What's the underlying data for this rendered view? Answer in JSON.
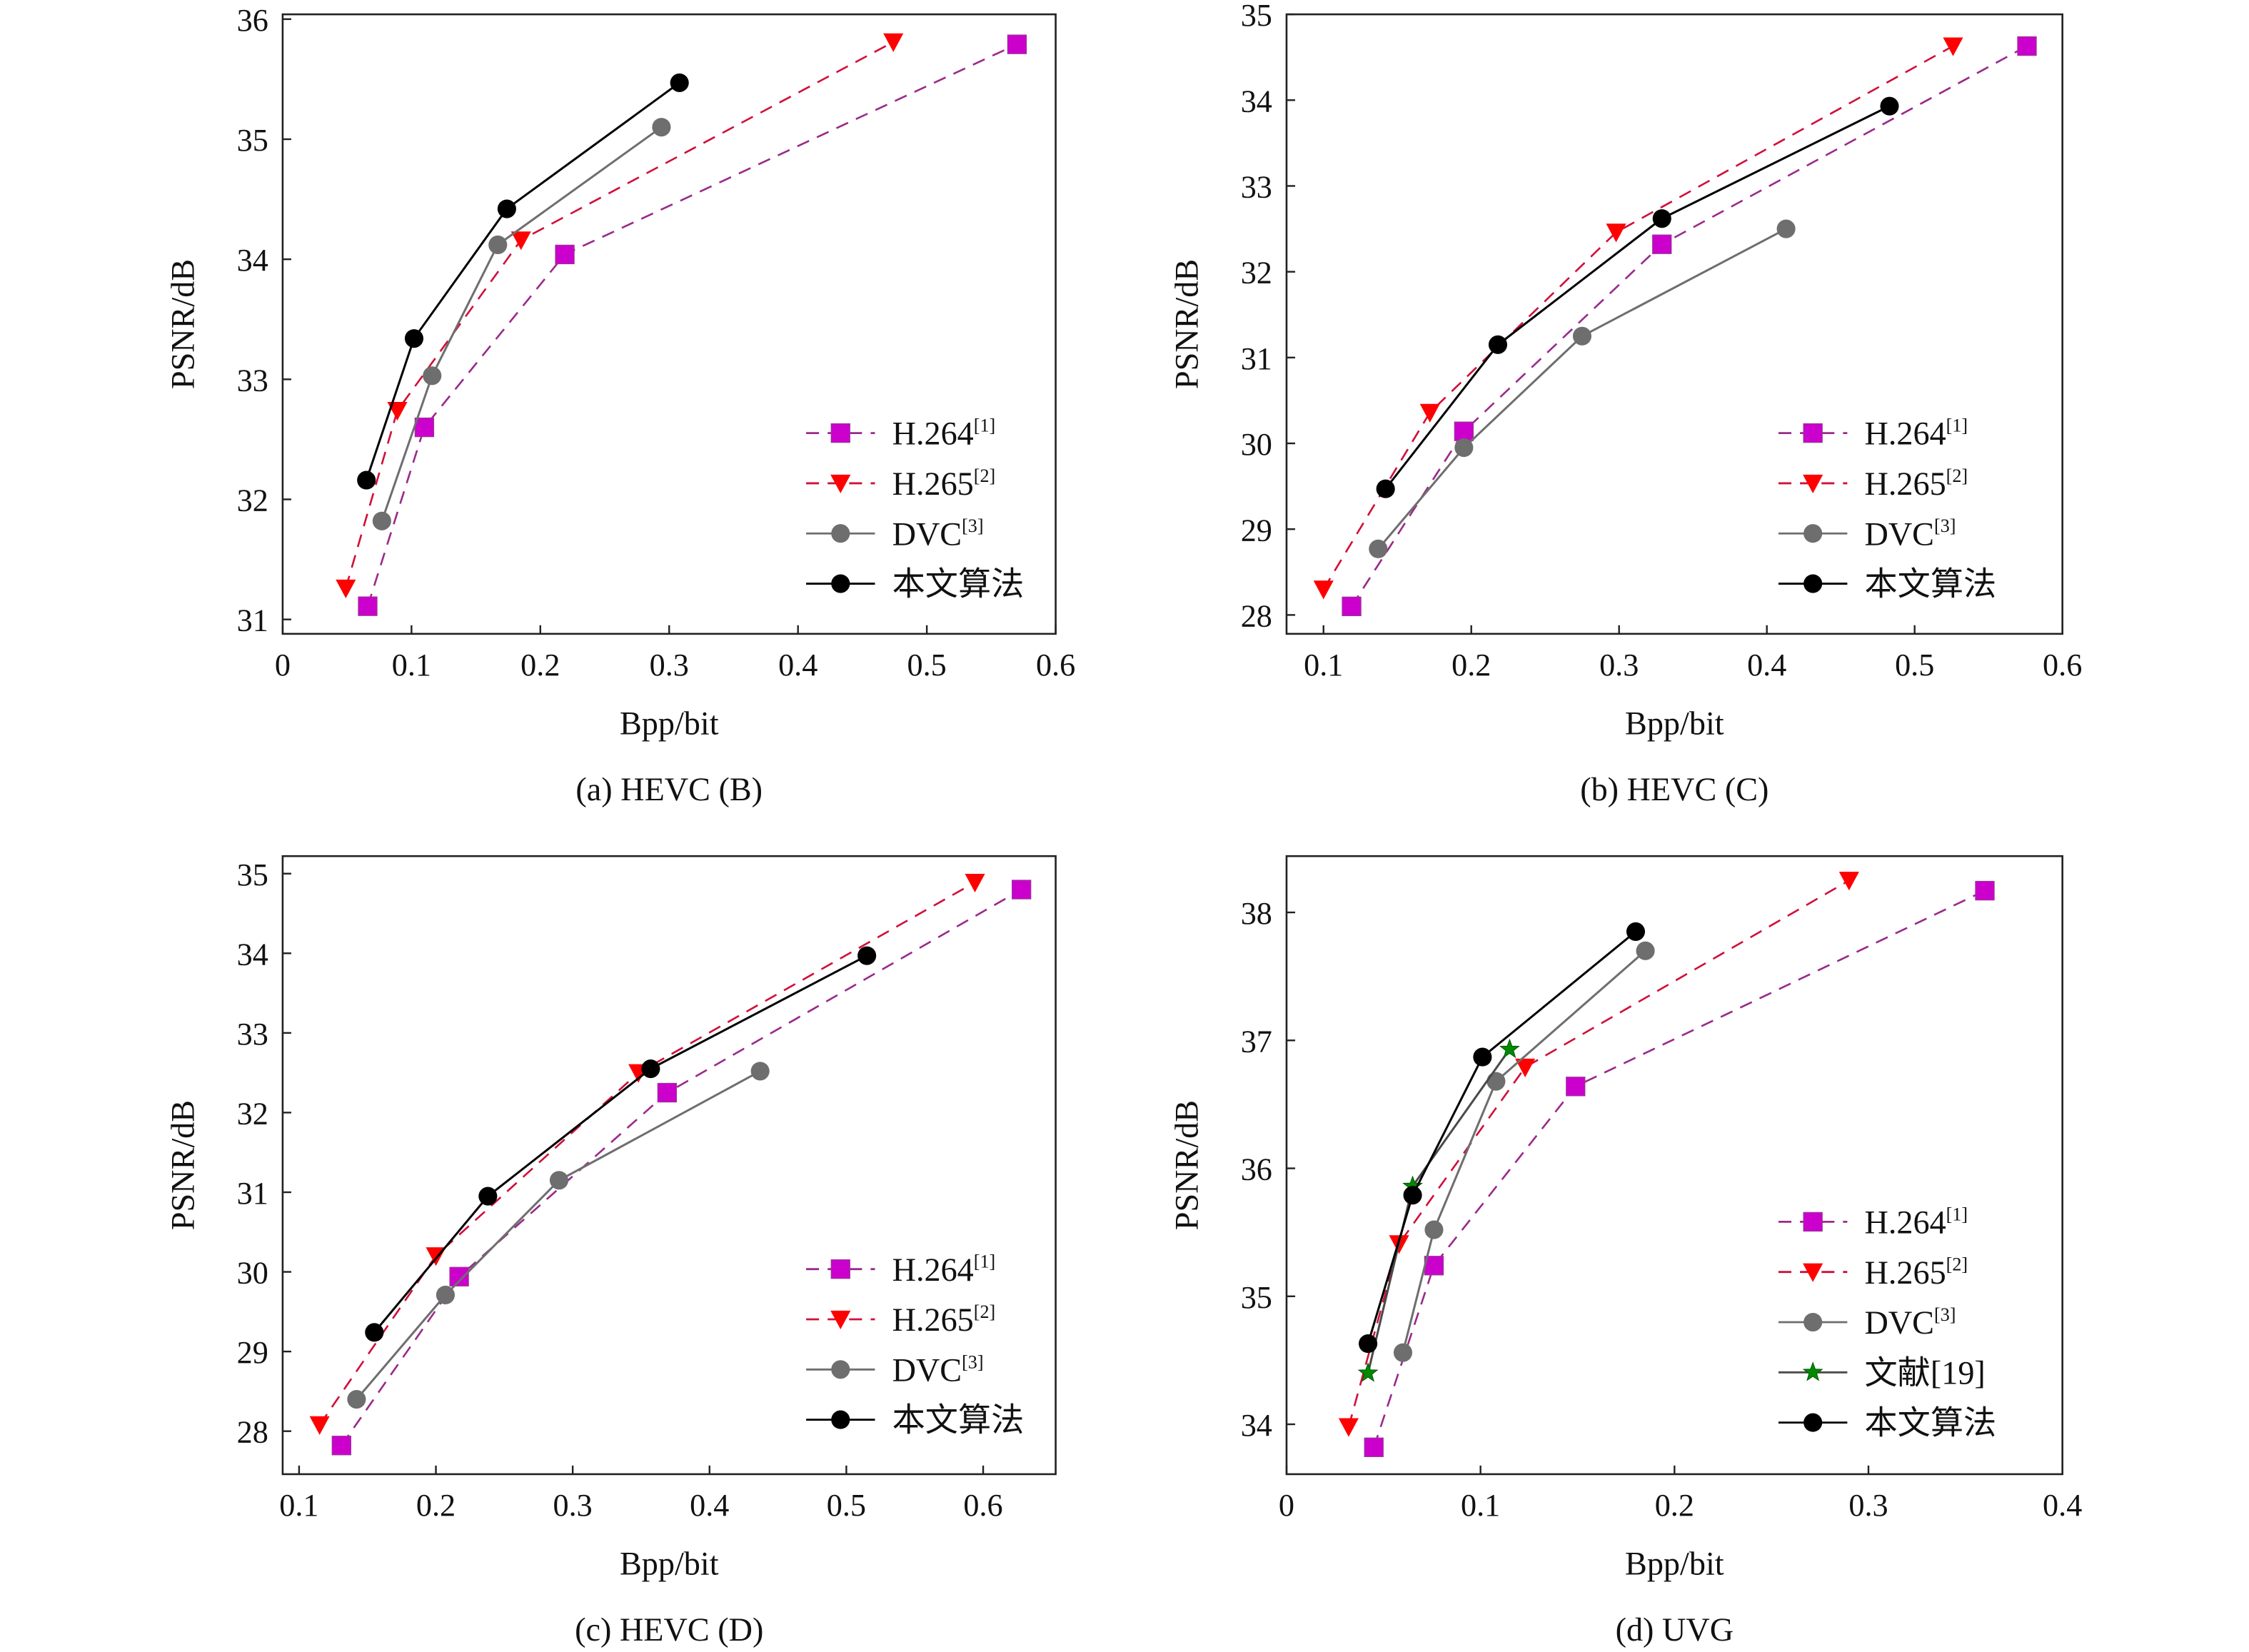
{
  "chart_data": [
    {
      "type": "line",
      "caption": "(a) HEVC (B)",
      "xlabel": "Bpp/bit",
      "ylabel": "PSNR/dB",
      "xlim": [
        0,
        0.6
      ],
      "ylim": [
        30.88,
        36.04
      ],
      "xticks": [
        "0",
        "0.1",
        "0.2",
        "0.3",
        "0.4",
        "0.5",
        "0.6"
      ],
      "xtick_values": [
        0,
        0.1,
        0.2,
        0.3,
        0.4,
        0.5,
        0.6
      ],
      "yticks": [
        "31",
        "32",
        "33",
        "34",
        "35",
        "36"
      ],
      "ytick_values": [
        31,
        32,
        33,
        34,
        35,
        36
      ],
      "legend_placement": "lower-right",
      "series": [
        {
          "name": "H.264",
          "ref": "[1]",
          "style": "h264",
          "x": [
            0.066,
            0.11,
            0.219,
            0.57
          ],
          "y": [
            31.11,
            32.6,
            34.04,
            35.79
          ]
        },
        {
          "name": "H.265",
          "ref": "[2]",
          "style": "h265",
          "x": [
            0.049,
            0.089,
            0.185,
            0.474
          ],
          "y": [
            31.26,
            32.74,
            34.16,
            35.81
          ]
        },
        {
          "name": "DVC",
          "ref": "[3]",
          "style": "dvc",
          "x": [
            0.077,
            0.116,
            0.167,
            0.294
          ],
          "y": [
            31.82,
            33.03,
            34.12,
            35.1
          ]
        },
        {
          "name": "本文算法",
          "ref": "",
          "style": "ours",
          "x": [
            0.065,
            0.102,
            0.174,
            0.308
          ],
          "y": [
            32.16,
            33.34,
            34.42,
            35.47
          ]
        }
      ]
    },
    {
      "type": "line",
      "caption": "(b) HEVC (C)",
      "xlabel": "Bpp/bit",
      "ylabel": "PSNR/dB",
      "xlim": [
        0.075,
        0.6
      ],
      "ylim": [
        27.78,
        35.0
      ],
      "xticks": [
        "0.1",
        "0.2",
        "0.3",
        "0.4",
        "0.5",
        "0.6"
      ],
      "xtick_values": [
        0.1,
        0.2,
        0.3,
        0.4,
        0.5,
        0.6
      ],
      "yticks": [
        "28",
        "29",
        "30",
        "31",
        "32",
        "33",
        "34",
        "35"
      ],
      "ytick_values": [
        28,
        29,
        30,
        31,
        32,
        33,
        34,
        35
      ],
      "legend_placement": "lower-right",
      "series": [
        {
          "name": "H.264",
          "ref": "[1]",
          "style": "h264",
          "x": [
            0.119,
            0.195,
            0.329,
            0.576
          ],
          "y": [
            28.1,
            30.14,
            32.32,
            34.63
          ]
        },
        {
          "name": "H.265",
          "ref": "[2]",
          "style": "h265",
          "x": [
            0.1,
            0.172,
            0.298,
            0.526
          ],
          "y": [
            28.3,
            30.36,
            32.46,
            34.63
          ]
        },
        {
          "name": "DVC",
          "ref": "[3]",
          "style": "dvc",
          "x": [
            0.137,
            0.195,
            0.275,
            0.413
          ],
          "y": [
            28.77,
            29.95,
            31.25,
            32.5
          ]
        },
        {
          "name": "本文算法",
          "ref": "",
          "style": "ours",
          "x": [
            0.142,
            0.218,
            0.329,
            0.483
          ],
          "y": [
            29.47,
            31.15,
            32.62,
            33.93
          ]
        }
      ]
    },
    {
      "type": "line",
      "caption": "(c) HEVC (D)",
      "xlabel": "Bpp/bit",
      "ylabel": "PSNR/dB",
      "xlim": [
        0.088,
        0.653
      ],
      "ylim": [
        27.46,
        35.22
      ],
      "xticks": [
        "0.1",
        "0.2",
        "0.3",
        "0.4",
        "0.5",
        "0.6"
      ],
      "xtick_values": [
        0.1,
        0.2,
        0.3,
        0.4,
        0.5,
        0.6
      ],
      "yticks": [
        "28",
        "29",
        "30",
        "31",
        "32",
        "33",
        "34",
        "35"
      ],
      "ytick_values": [
        28,
        29,
        30,
        31,
        32,
        33,
        34,
        35
      ],
      "legend_placement": "lower-right",
      "series": [
        {
          "name": "H.264",
          "ref": "[1]",
          "style": "h264",
          "x": [
            0.131,
            0.217,
            0.369,
            0.628
          ],
          "y": [
            27.82,
            29.94,
            32.25,
            34.8
          ]
        },
        {
          "name": "H.265",
          "ref": "[2]",
          "style": "h265",
          "x": [
            0.115,
            0.2,
            0.348,
            0.594
          ],
          "y": [
            28.08,
            30.2,
            32.5,
            34.89
          ]
        },
        {
          "name": "DVC",
          "ref": "[3]",
          "style": "dvc",
          "x": [
            0.142,
            0.207,
            0.29,
            0.437
          ],
          "y": [
            28.4,
            29.71,
            31.15,
            32.52
          ]
        },
        {
          "name": "本文算法",
          "ref": "",
          "style": "ours",
          "x": [
            0.155,
            0.238,
            0.357,
            0.515
          ],
          "y": [
            29.24,
            30.95,
            32.55,
            33.97
          ]
        }
      ]
    },
    {
      "type": "line",
      "caption": "(d) UVG",
      "xlabel": "Bpp/bit",
      "ylabel": "PSNR/dB",
      "xlim": [
        0,
        0.4
      ],
      "ylim": [
        33.61,
        38.44
      ],
      "xticks": [
        "0",
        "0.1",
        "0.2",
        "0.3",
        "0.4"
      ],
      "xtick_values": [
        0,
        0.1,
        0.2,
        0.3,
        0.4
      ],
      "yticks": [
        "34",
        "35",
        "36",
        "37",
        "38"
      ],
      "ytick_values": [
        34,
        35,
        36,
        37,
        38
      ],
      "legend_placement": "lower-right",
      "series": [
        {
          "name": "H.264",
          "ref": "[1]",
          "style": "h264",
          "x": [
            0.045,
            0.076,
            0.149,
            0.36
          ],
          "y": [
            33.82,
            35.24,
            36.64,
            38.17
          ]
        },
        {
          "name": "H.265",
          "ref": "[2]",
          "style": "h265",
          "x": [
            0.032,
            0.058,
            0.123,
            0.29
          ],
          "y": [
            33.98,
            35.41,
            36.79,
            38.25
          ]
        },
        {
          "name": "DVC",
          "ref": "[3]",
          "style": "dvc",
          "x": [
            0.06,
            0.076,
            0.108,
            0.185
          ],
          "y": [
            34.56,
            35.52,
            36.68,
            37.7
          ]
        },
        {
          "name": "文献[19]",
          "ref": "",
          "style": "ref19",
          "x": [
            0.042,
            0.065,
            0.115
          ],
          "y": [
            34.4,
            35.86,
            36.93
          ]
        },
        {
          "name": "本文算法",
          "ref": "",
          "style": "ours",
          "x": [
            0.042,
            0.065,
            0.101,
            0.18
          ],
          "y": [
            34.63,
            35.79,
            36.87,
            37.85
          ]
        }
      ]
    }
  ],
  "styles": {
    "h264": {
      "marker": "square",
      "marker_color": "#cc00cc",
      "line_color": "#9a2a8a",
      "dashed": true
    },
    "h265": {
      "marker": "triangle-down",
      "marker_color": "#ff0000",
      "line_color": "#d0103a",
      "dashed": true
    },
    "dvc": {
      "marker": "circle",
      "marker_color": "#6e6e6e",
      "line_color": "#6e6e6e",
      "dashed": false
    },
    "ref19": {
      "marker": "star",
      "marker_color": "#008a00",
      "line_color": "#4a4a4a",
      "dashed": false
    },
    "ours": {
      "marker": "circle",
      "marker_color": "#000000",
      "line_color": "#000000",
      "dashed": false
    }
  }
}
